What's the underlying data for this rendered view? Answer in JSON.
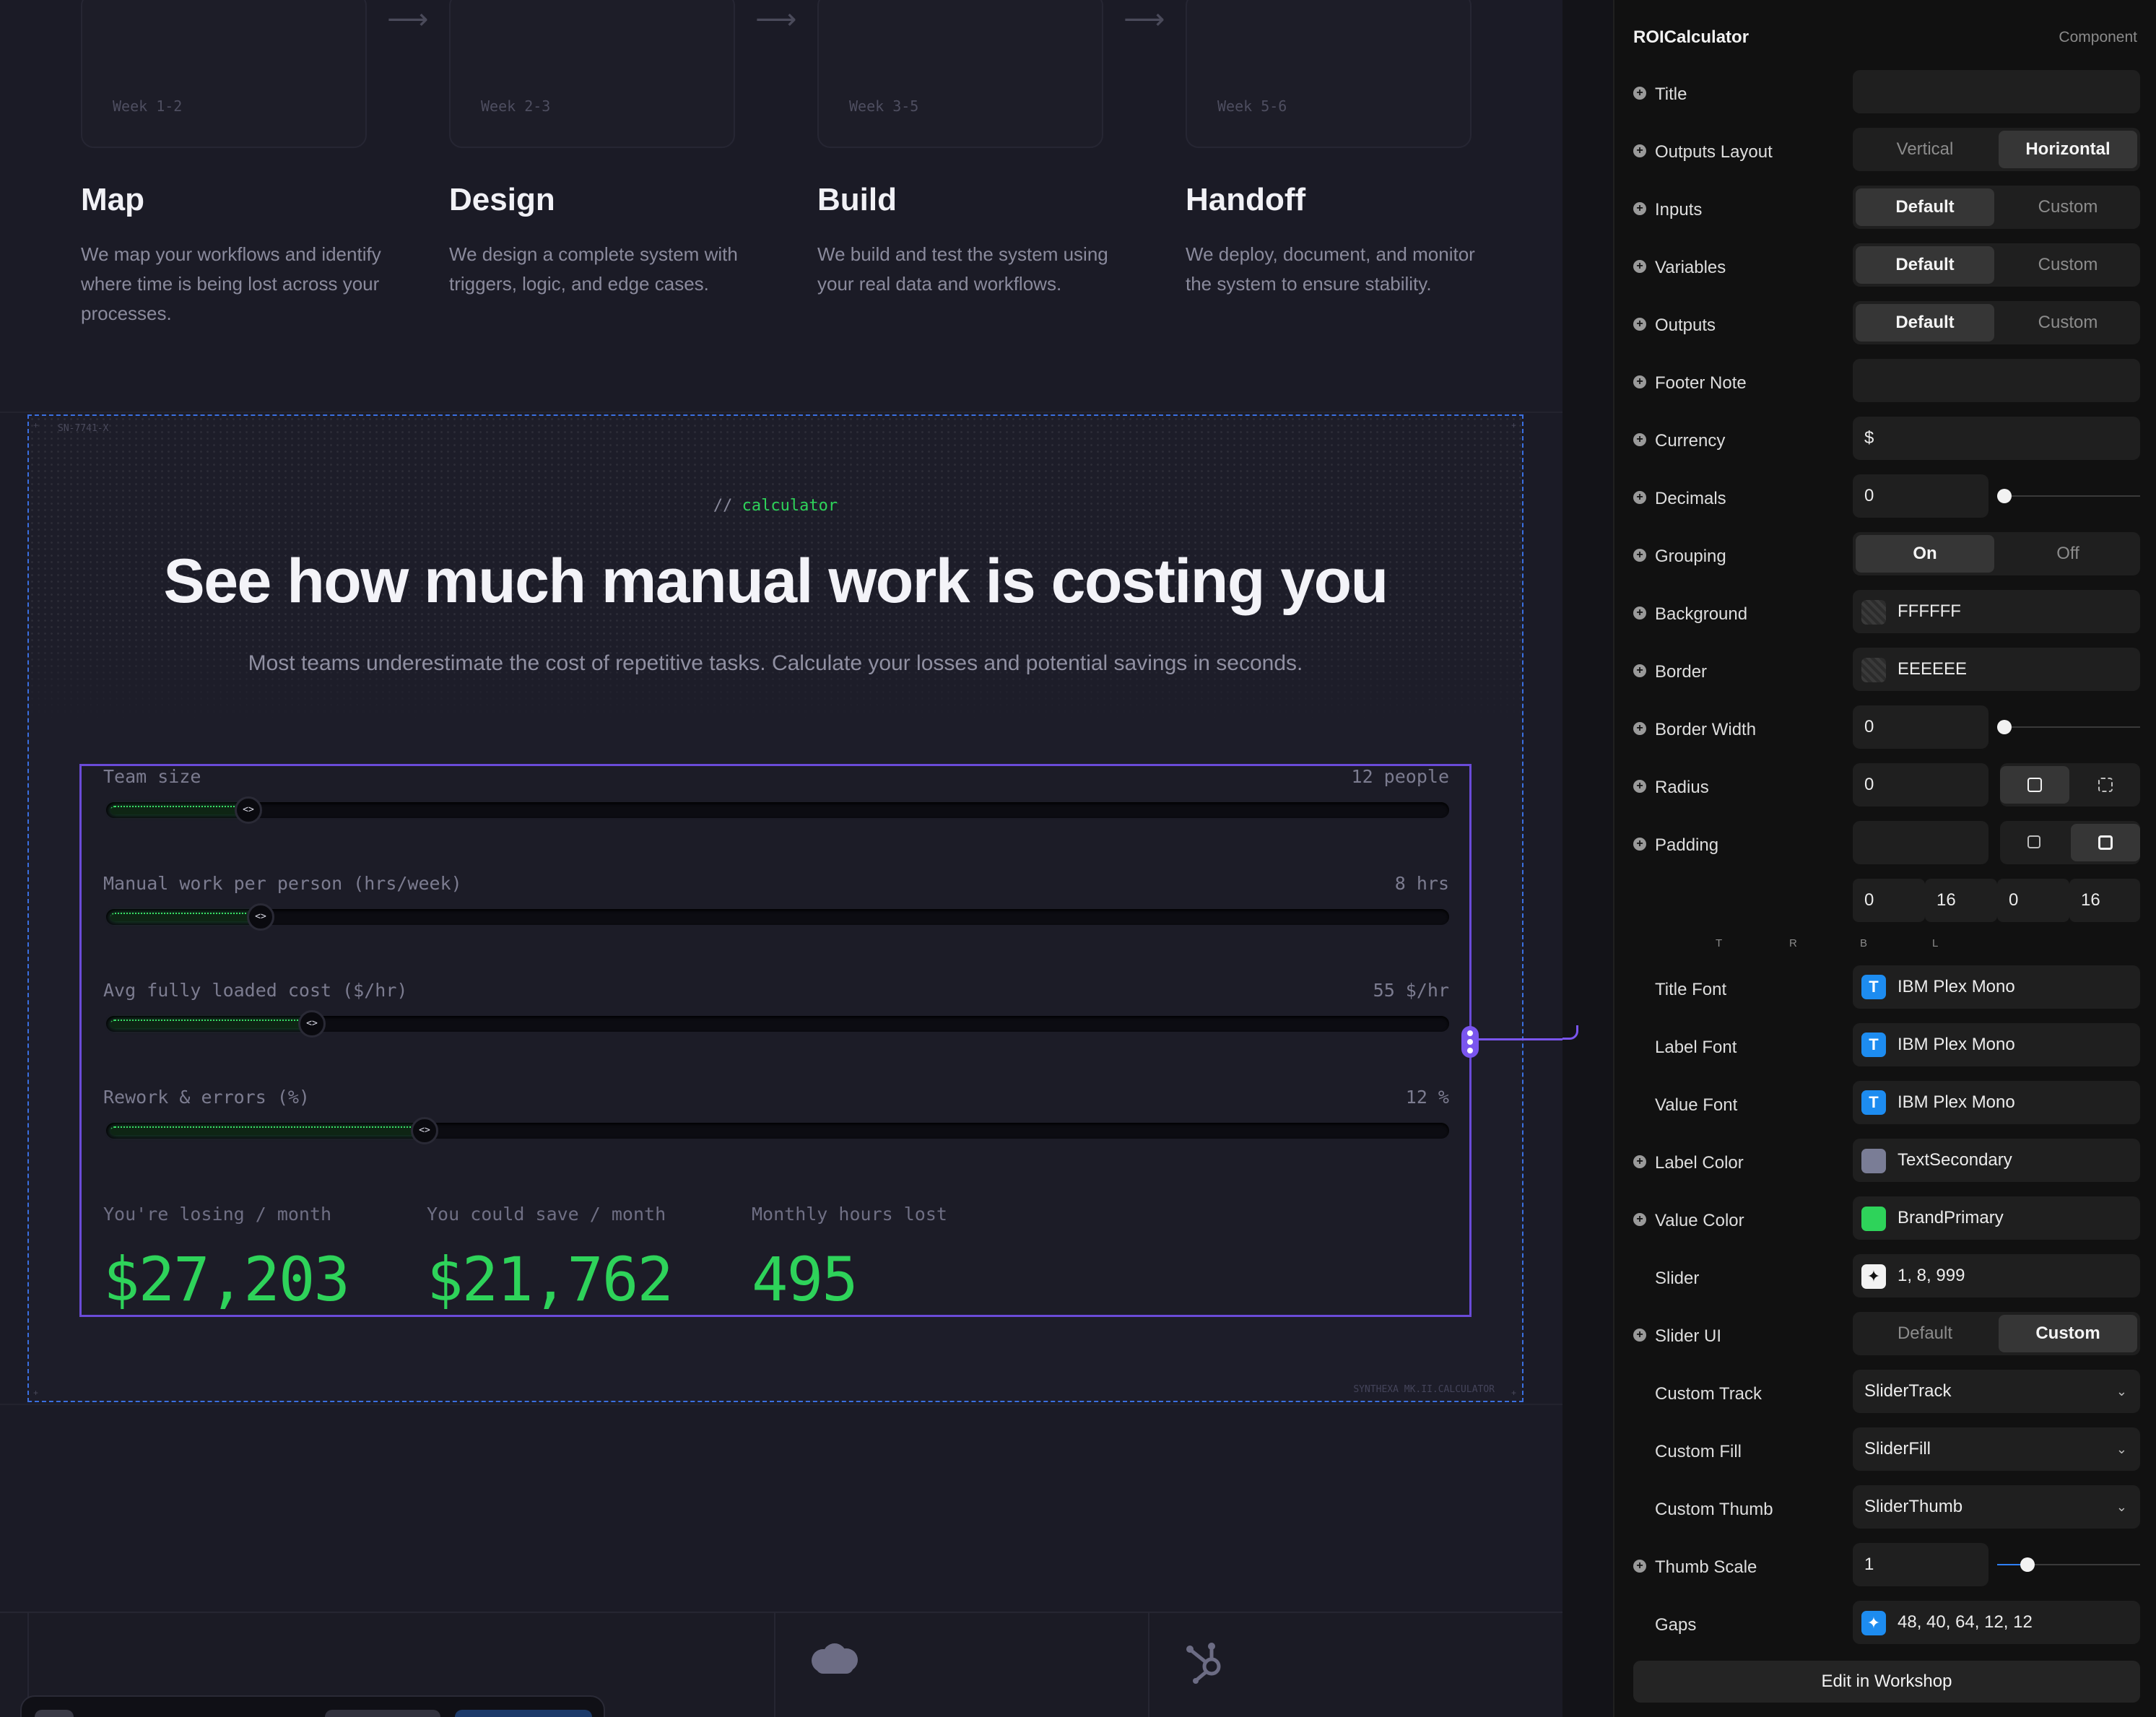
{
  "steps": [
    {
      "week": "Week 1-2",
      "title": "Map",
      "desc": "We map your workflows and identify where time is being lost across your processes."
    },
    {
      "week": "Week 2-3",
      "title": "Design",
      "desc": "We design a complete system with triggers, logic, and edge cases."
    },
    {
      "week": "Week 3-5",
      "title": "Build",
      "desc": "We build and test the system using your real data and workflows."
    },
    {
      "week": "Week 5-6",
      "title": "Handoff",
      "desc": "We deploy, document, and monitor the system to ensure stability."
    }
  ],
  "section": {
    "id": "SN-7741-X",
    "footer": "SYNTHEXA MK.II.CALCULATOR",
    "eyebrow_prefix": "// ",
    "eyebrow_accent": "calculator",
    "headline": "See how much manual work is costing you",
    "subline": "Most teams underestimate the cost of repetitive tasks. Calculate your losses and potential savings in seconds."
  },
  "calculator": {
    "sliders": [
      {
        "label": "Team size",
        "value": "12 people",
        "fraction": 0.106
      },
      {
        "label": "Manual work per person (hrs/week)",
        "value": "8 hrs",
        "fraction": 0.115
      },
      {
        "label": "Avg fully loaded cost ($/hr)",
        "value": "55 $/hr",
        "fraction": 0.153
      },
      {
        "label": "Rework & errors (%)",
        "value": "12 %",
        "fraction": 0.237
      }
    ],
    "outputs": [
      {
        "label": "You're losing / month",
        "value": "$27,203"
      },
      {
        "label": "You could save / month",
        "value": "$21,762"
      },
      {
        "label": "Monthly hours lost",
        "value": "495"
      }
    ],
    "thumb_glyph": "<>",
    "accent_color": "#2ed35a",
    "selection_color": "#6a4bd8"
  },
  "panel": {
    "title": "ROICalculator",
    "tag": "Component",
    "rows": {
      "title": {
        "label": "Title",
        "value": ""
      },
      "outputs_layout": {
        "label": "Outputs Layout",
        "left": "Vertical",
        "right": "Horizontal",
        "selected": "right"
      },
      "inputs": {
        "label": "Inputs",
        "left": "Default",
        "right": "Custom",
        "selected": "left"
      },
      "variables": {
        "label": "Variables",
        "left": "Default",
        "right": "Custom",
        "selected": "left"
      },
      "outputs": {
        "label": "Outputs",
        "left": "Default",
        "right": "Custom",
        "selected": "left"
      },
      "footer_note": {
        "label": "Footer Note",
        "value": ""
      },
      "currency": {
        "label": "Currency",
        "value": "$"
      },
      "decimals": {
        "label": "Decimals",
        "value": "0",
        "slider": 0.0
      },
      "grouping": {
        "label": "Grouping",
        "left": "On",
        "right": "Off",
        "selected": "left"
      },
      "background": {
        "label": "Background",
        "value": "FFFFFF"
      },
      "border": {
        "label": "Border",
        "value": "EEEEEE"
      },
      "border_width": {
        "label": "Border Width",
        "value": "0",
        "slider": 0.0
      },
      "radius": {
        "label": "Radius",
        "value": "0"
      },
      "padding": {
        "label": "Padding",
        "value": "",
        "sides": [
          "0",
          "16",
          "0",
          "16"
        ],
        "side_letters": [
          "T",
          "R",
          "B",
          "L"
        ]
      },
      "title_font": {
        "label": "Title Font",
        "value": "IBM Plex Mono",
        "badge": "T"
      },
      "label_font": {
        "label": "Label Font",
        "value": "IBM Plex Mono",
        "badge": "T"
      },
      "value_font": {
        "label": "Value Font",
        "value": "IBM Plex Mono",
        "badge": "T"
      },
      "label_color": {
        "label": "Label Color",
        "value": "TextSecondary",
        "color": "#7a7d96"
      },
      "value_color": {
        "label": "Value Color",
        "value": "BrandPrimary",
        "color": "#2ed35a"
      },
      "slider": {
        "label": "Slider",
        "value": "1, 8, 999"
      },
      "slider_ui": {
        "label": "Slider UI",
        "left": "Default",
        "right": "Custom",
        "selected": "right"
      },
      "custom_track": {
        "label": "Custom Track",
        "value": "SliderTrack"
      },
      "custom_fill": {
        "label": "Custom Fill",
        "value": "SliderFill"
      },
      "custom_thumb": {
        "label": "Custom Thumb",
        "value": "SliderThumb"
      },
      "thumb_scale": {
        "label": "Thumb Scale",
        "value": "1",
        "slider": 0.18
      },
      "gaps": {
        "label": "Gaps",
        "value": "48, 40, 64, 12, 12"
      }
    },
    "edit_button": "Edit in Workshop"
  }
}
